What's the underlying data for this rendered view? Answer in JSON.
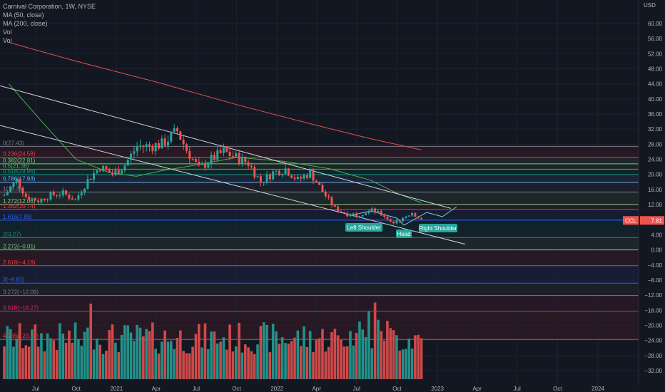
{
  "legend": {
    "title": "Carnival Corporation, 1W, NYSE",
    "ma50": "MA (50, close)",
    "ma200": "MA (200, close)",
    "vol1": "Vol",
    "vol2": "Vol"
  },
  "axis": {
    "currency": "USD",
    "y_ticks": [
      60,
      56,
      52,
      48,
      44,
      40,
      36,
      32,
      28,
      24,
      20,
      16,
      12,
      8,
      4,
      0,
      -4,
      -8,
      -12,
      -16,
      -20,
      -24,
      -28,
      -32
    ],
    "y_tick_labels": [
      "60.00",
      "56.00",
      "52.00",
      "48.00",
      "44.00",
      "40.00",
      "36.00",
      "32.00",
      "28.00",
      "24.00",
      "20.00",
      "16.00",
      "12.00",
      "8.00",
      "4.00",
      "0.00",
      "−4.00",
      "−8.00",
      "−12.00",
      "−16.00",
      "−20.00",
      "−24.00",
      "−28.00",
      "−32.00"
    ],
    "x_labels": [
      "Jul",
      "Oct",
      "2021",
      "Apr",
      "Jul",
      "Oct",
      "2022",
      "Apr",
      "Jul",
      "Oct",
      "2023",
      "Apr",
      "Jul",
      "Oct",
      "2024"
    ],
    "price_tag": "7.81",
    "symbol_tag": "CCL"
  },
  "colors": {
    "background": "#131722",
    "up": "#26a69a",
    "down": "#ef5350",
    "ma50": "#4caf50",
    "ma200": "#e0504a",
    "trendline": "#d1d4dc"
  },
  "annotations": {
    "left_shoulder": "Left Shoulder",
    "head": "Head",
    "right_shoulder": "Right Shoulder"
  },
  "fib_levels": [
    {
      "label": "0(27.43)",
      "value": 27.43,
      "color": "#787b86"
    },
    {
      "label": "0.236(24.58)",
      "value": 24.58,
      "color": "#f23645"
    },
    {
      "label": "0.382(22.81)",
      "value": 22.81,
      "color": "#81c784"
    },
    {
      "label": "0.5(21.38)",
      "value": 21.38,
      "color": "#4caf50"
    },
    {
      "label": "0.618(19.96)",
      "value": 19.96,
      "color": "#089981"
    },
    {
      "label": "0.786(17.93)",
      "value": 17.93,
      "color": "#64b5f6"
    },
    {
      "label": "1(15.35)",
      "value": 15.35,
      "color": "#787b86"
    },
    {
      "label": "1.272(12.06)",
      "value": 12.06,
      "color": "#81c784"
    },
    {
      "label": "1.382(10.74)",
      "value": 10.74,
      "color": "#f23645"
    },
    {
      "label": "1.618(7.89)",
      "value": 7.89,
      "color": "#2962ff"
    },
    {
      "label": "2(3.27)",
      "value": 3.27,
      "color": "#089981"
    },
    {
      "label": "2.272(−0.01)",
      "value": -0.01,
      "color": "#81c784"
    },
    {
      "label": "2.618(−4.19)",
      "value": -4.19,
      "color": "#f23645"
    },
    {
      "label": "3(−8.81)",
      "value": -8.81,
      "color": "#2962ff"
    },
    {
      "label": "3.272(−12.09)",
      "value": -12.09,
      "color": "#787b86"
    },
    {
      "label": "3.618(−16.27)",
      "value": -16.27,
      "color": "#e91e63"
    },
    {
      "label": "4.236(−23.73)",
      "value": -23.73,
      "color": "#f23645"
    }
  ],
  "chart_data": {
    "type": "candlestick",
    "symbol": "CCL",
    "interval": "1W",
    "ylim": [
      -34,
      62
    ],
    "x_range": [
      "2020-05-01",
      "2024-05-01"
    ],
    "last_price": 7.81,
    "trendlines": [
      {
        "from": [
          "2020-05-01",
          43.5
        ],
        "to": [
          "2022-12-16",
          11.0
        ]
      },
      {
        "from": [
          "2020-05-01",
          33.0
        ],
        "to": [
          "2022-12-09",
          1.5
        ]
      }
    ],
    "ma200": [
      [
        "2020-05-01",
        55.0
      ],
      [
        "2020-10-01",
        50.0
      ],
      [
        "2021-04-01",
        44.5
      ],
      [
        "2021-10-01",
        38.5
      ],
      [
        "2022-04-01",
        33.0
      ],
      [
        "2022-08-01",
        29.5
      ],
      [
        "2022-11-25",
        26.5
      ]
    ],
    "ma50": [
      [
        "2020-05-01",
        44.0
      ],
      [
        "2020-07-15",
        34.0
      ],
      [
        "2020-10-01",
        24.0
      ],
      [
        "2020-12-15",
        20.5
      ],
      [
        "2021-02-15",
        19.5
      ],
      [
        "2021-04-15",
        21.0
      ],
      [
        "2021-07-01",
        22.5
      ],
      [
        "2021-10-01",
        24.5
      ],
      [
        "2022-01-15",
        23.5
      ],
      [
        "2022-05-01",
        21.5
      ],
      [
        "2022-08-01",
        18.5
      ],
      [
        "2022-10-01",
        15.0
      ],
      [
        "2022-11-25",
        12.5
      ]
    ],
    "price_path": [
      [
        "2020-05-08",
        14.5
      ],
      [
        "2020-06-05",
        18.5
      ],
      [
        "2020-06-26",
        14.2
      ],
      [
        "2020-07-24",
        13.0
      ],
      [
        "2020-08-21",
        14.5
      ],
      [
        "2020-09-18",
        15.0
      ],
      [
        "2020-10-16",
        13.2
      ],
      [
        "2020-11-13",
        18.5
      ],
      [
        "2020-12-11",
        22.0
      ],
      [
        "2021-01-08",
        20.0
      ],
      [
        "2021-02-05",
        22.5
      ],
      [
        "2021-03-05",
        27.5
      ],
      [
        "2021-04-02",
        27.5
      ],
      [
        "2021-04-30",
        28.0
      ],
      [
        "2021-06-04",
        31.5
      ],
      [
        "2021-06-25",
        26.5
      ],
      [
        "2021-07-23",
        21.5
      ],
      [
        "2021-08-20",
        24.0
      ],
      [
        "2021-09-17",
        26.0
      ],
      [
        "2021-10-15",
        24.5
      ],
      [
        "2021-11-12",
        23.0
      ],
      [
        "2021-12-10",
        18.0
      ],
      [
        "2022-01-07",
        20.5
      ],
      [
        "2022-02-04",
        21.5
      ],
      [
        "2022-03-04",
        18.5
      ],
      [
        "2022-04-01",
        20.5
      ],
      [
        "2022-04-29",
        15.5
      ],
      [
        "2022-05-27",
        11.0
      ],
      [
        "2022-06-24",
        9.5
      ],
      [
        "2022-07-22",
        9.5
      ],
      [
        "2022-08-19",
        10.5
      ],
      [
        "2022-09-16",
        9.0
      ],
      [
        "2022-10-07",
        7.0
      ],
      [
        "2022-10-28",
        8.5
      ],
      [
        "2022-11-18",
        10.0
      ],
      [
        "2022-12-09",
        7.8
      ]
    ]
  }
}
